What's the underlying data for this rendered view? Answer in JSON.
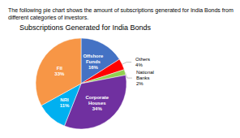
{
  "chart_data": {
    "type": "pie",
    "title": "Subscriptions Generated for India Bonds",
    "subtitle": "The following pie chart shows the amount of subscriptions generated for India Bonds from different categories of investors.",
    "categories": [
      "Offshore\nFunds",
      "Others",
      "National\nBanks",
      "Corporate\nHouses",
      "NRI",
      "FII"
    ],
    "values": [
      16,
      4,
      2,
      34,
      11,
      33
    ],
    "value_labels": [
      "16%",
      "4%",
      "2%",
      "34%",
      "11%",
      "33%"
    ],
    "data_labels": true,
    "colors": [
      "#4472C4",
      "#FF0000",
      "#92D050",
      "#7030A0",
      "#00B0F0",
      "#F79646"
    ]
  }
}
